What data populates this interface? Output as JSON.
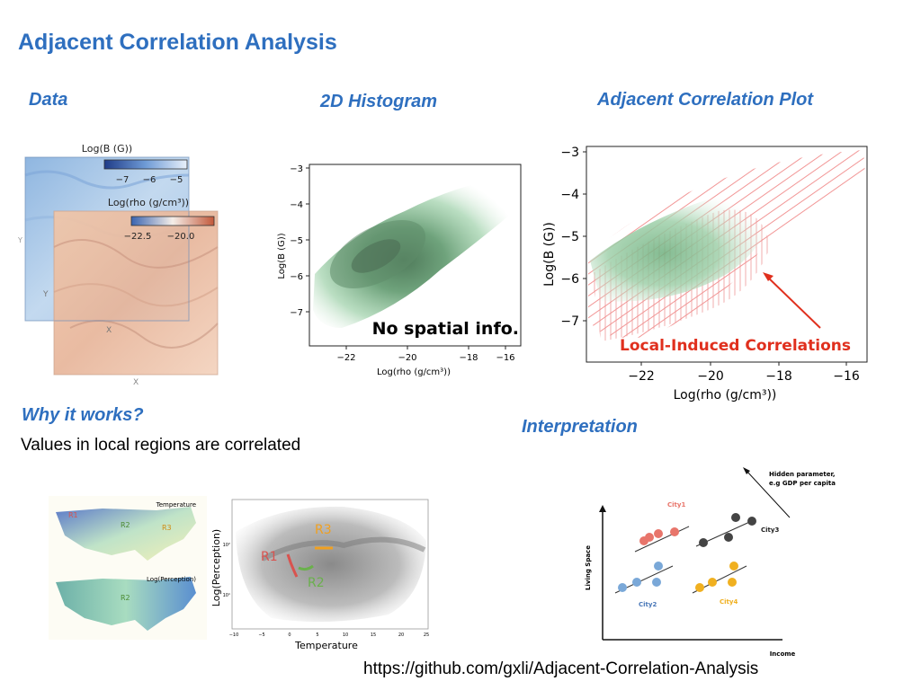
{
  "slide": {
    "title": "Adjacent Correlation Analysis",
    "footer_url": "https://github.com/gxli/Adjacent-Correlation-Analysis"
  },
  "sections": {
    "data": "Data",
    "histogram": "2D Histogram",
    "acp": "Adjacent Correlation Plot",
    "why": "Why it works?",
    "interpretation": "Interpretation"
  },
  "why_text": "Values in local regions are correlated",
  "data_panel": {
    "map_b_title": "Log(B (G))",
    "map_b_ticks": [
      "−7",
      "−6",
      "−5"
    ],
    "map_rho_title": "Log(rho (g/cm³))",
    "map_rho_ticks": [
      "−22.5",
      "−20.0"
    ],
    "axis_x": "X",
    "axis_y": "Y",
    "colors": {
      "b_map": "#a9c8e8",
      "rho_map": "#e9b89a"
    }
  },
  "histogram": {
    "xlabel": "Log(rho (g/cm³))",
    "ylabel": "Log(B (G))",
    "xticks": [
      "−22",
      "−20",
      "−18",
      "−16"
    ],
    "yticks": [
      "−3",
      "−4",
      "−5",
      "−6",
      "−7"
    ],
    "annotation": "No spatial info."
  },
  "acp": {
    "xlabel": "Log(rho (g/cm³))",
    "ylabel": "Log(B (G))",
    "xticks": [
      "−22",
      "−20",
      "−18",
      "−16"
    ],
    "yticks": [
      "−3",
      "−4",
      "−5",
      "−6",
      "−7"
    ],
    "annotation": "Local-Induced Correlations",
    "colors": {
      "annotation": "#e0301e",
      "segments": "#f08a8a",
      "density": "#7fbf90"
    }
  },
  "why_panel": {
    "map_temp_label": "Temperature",
    "map_perc_label": "Log(Perception)",
    "region_labels": [
      "R1",
      "R2",
      "R3"
    ],
    "scatter_ylabel": "Log(Perception)",
    "scatter_xlabel": "Temperature",
    "scatter_yticks": [
      "10²",
      "10¹"
    ],
    "scatter_xticks": [
      "−10",
      "−5",
      "0",
      "5",
      "10",
      "15",
      "20",
      "25"
    ],
    "colors": {
      "R1": "#d9534f",
      "R2": "#6ab04c",
      "R3": "#f0a020"
    }
  },
  "interpretation_panel": {
    "hidden_param": [
      "Hidden parameter,",
      "e.g GDP per capita"
    ],
    "ylabel": "Living Space",
    "xlabel": "Income",
    "cities": [
      "City1",
      "City2",
      "City3",
      "City4"
    ],
    "colors": {
      "City1": "#e8756b",
      "City2": "#7aa8d8",
      "City3": "#444444",
      "City4": "#f0b020"
    }
  }
}
